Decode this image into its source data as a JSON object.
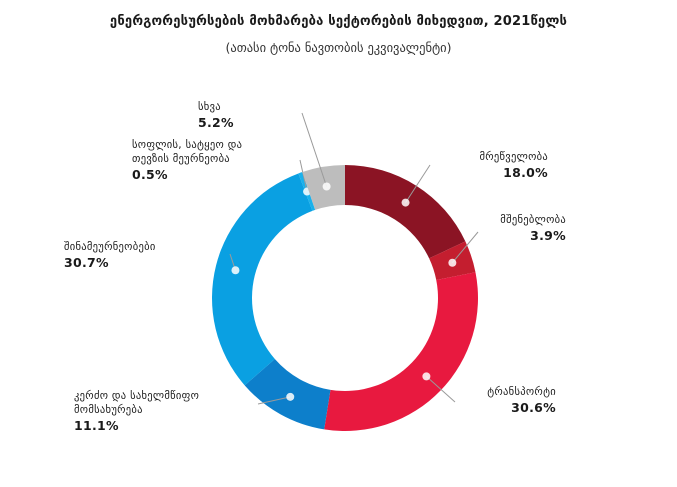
{
  "title": "ენერგორესურსების მოხმარება სექტორების მიხედვით, 2021წელს",
  "subtitle": "(ათასი ტონა ნავთობის ეკვივალენტი)",
  "chart_data": {
    "type": "pie",
    "categories": [
      "მრეწველობა",
      "მშენებლობა",
      "ტრანსპორტი",
      "კერძო და სახელმწიფო მომსახურება",
      "შინამეურნეობები",
      "სოფლის, სატყეო და თევზის მეურნეობა",
      "სხვა"
    ],
    "values": [
      18.0,
      3.9,
      30.6,
      11.1,
      30.7,
      0.5,
      5.2
    ],
    "colors": [
      "#8b1424",
      "#c41e2f",
      "#e8193f",
      "#0d7fcb",
      "#0aa0e2",
      "#19b1ec",
      "#bdbdbd"
    ],
    "value_labels": [
      "18.0%",
      "3.9%",
      "30.6%",
      "11.1%",
      "30.7%",
      "0.5%",
      "5.2%"
    ]
  },
  "labels": {
    "industry": {
      "name": "მრეწველობა",
      "value": "18.0%"
    },
    "construction": {
      "name": "მშენებლობა",
      "value": "3.9%"
    },
    "transport": {
      "name": "ტრანსპორტი",
      "value": "30.6%"
    },
    "services": {
      "line1": "კერძო და სახელმწიფო",
      "line2": "მომსახურება",
      "value": "11.1%"
    },
    "households": {
      "name": "შინამეურნეობები",
      "value": "30.7%"
    },
    "agriculture": {
      "line1": "სოფლის, სატყეო და",
      "line2": "თევზის მეურნეობა",
      "value": "0.5%"
    },
    "other": {
      "name": "სხვა",
      "value": "5.2%"
    }
  }
}
